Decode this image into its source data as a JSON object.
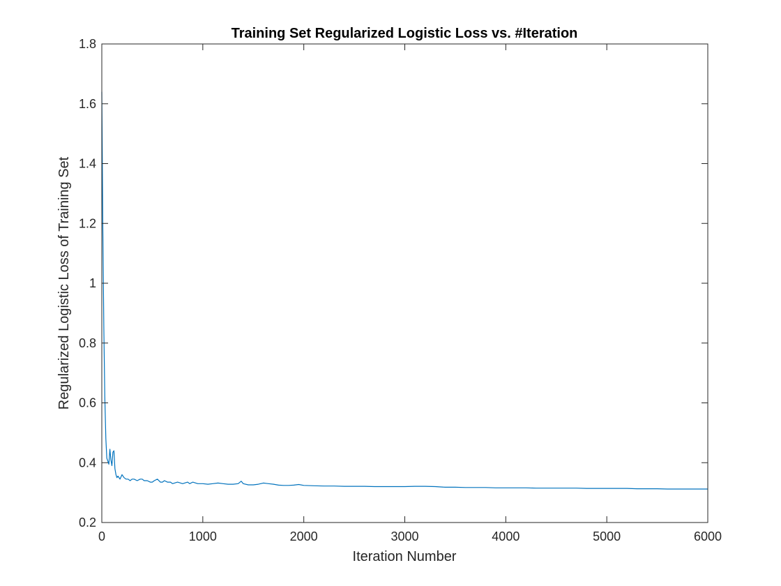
{
  "chart_data": {
    "type": "line",
    "title": "Training Set Regularized Logistic Loss vs. #Iteration",
    "xlabel": "Iteration Number",
    "ylabel": "Regularized Logistic Loss of Training Set",
    "xlim": [
      0,
      6000
    ],
    "ylim": [
      0.2,
      1.8
    ],
    "xticks": [
      0,
      1000,
      2000,
      3000,
      4000,
      5000,
      6000
    ],
    "yticks": [
      0.2,
      0.4,
      0.6,
      0.8,
      1,
      1.2,
      1.4,
      1.6,
      1.8
    ],
    "grid": false,
    "line_color": "#0072BD",
    "series": [
      {
        "x": [
          0,
          10,
          20,
          30,
          40,
          50,
          60,
          70,
          80,
          90,
          100,
          110,
          120,
          130,
          140,
          150,
          160,
          180,
          200,
          220,
          240,
          260,
          280,
          300,
          320,
          350,
          380,
          400,
          420,
          450,
          480,
          500,
          520,
          550,
          580,
          600,
          620,
          650,
          680,
          700,
          750,
          800,
          850,
          870,
          900,
          950,
          1000,
          1050,
          1100,
          1150,
          1200,
          1250,
          1300,
          1350,
          1380,
          1400,
          1450,
          1500,
          1550,
          1600,
          1650,
          1700,
          1750,
          1800,
          1850,
          1900,
          1950,
          2000,
          2100,
          2200,
          2300,
          2400,
          2500,
          2600,
          2700,
          2800,
          2900,
          3000,
          3100,
          3200,
          3300,
          3400,
          3500,
          3600,
          3700,
          3800,
          3900,
          4000,
          4100,
          4200,
          4300,
          4400,
          4500,
          4600,
          4700,
          4800,
          4900,
          5000,
          5100,
          5200,
          5300,
          5400,
          5500,
          5600,
          5700,
          5800,
          5900,
          6000
        ],
        "y": [
          1.64,
          1.2,
          0.85,
          0.62,
          0.48,
          0.415,
          0.405,
          0.395,
          0.445,
          0.41,
          0.39,
          0.435,
          0.44,
          0.38,
          0.36,
          0.35,
          0.355,
          0.345,
          0.36,
          0.35,
          0.345,
          0.345,
          0.34,
          0.345,
          0.345,
          0.34,
          0.345,
          0.345,
          0.34,
          0.34,
          0.335,
          0.335,
          0.34,
          0.345,
          0.335,
          0.335,
          0.34,
          0.335,
          0.335,
          0.33,
          0.335,
          0.33,
          0.335,
          0.33,
          0.335,
          0.33,
          0.33,
          0.328,
          0.33,
          0.332,
          0.33,
          0.328,
          0.328,
          0.33,
          0.338,
          0.33,
          0.326,
          0.326,
          0.328,
          0.332,
          0.33,
          0.328,
          0.325,
          0.324,
          0.324,
          0.325,
          0.327,
          0.324,
          0.323,
          0.322,
          0.322,
          0.321,
          0.321,
          0.321,
          0.32,
          0.32,
          0.32,
          0.32,
          0.321,
          0.321,
          0.32,
          0.318,
          0.318,
          0.317,
          0.317,
          0.317,
          0.316,
          0.316,
          0.316,
          0.316,
          0.315,
          0.315,
          0.315,
          0.315,
          0.315,
          0.314,
          0.314,
          0.314,
          0.314,
          0.314,
          0.313,
          0.313,
          0.313,
          0.312,
          0.312,
          0.312,
          0.312,
          0.312
        ]
      }
    ]
  }
}
